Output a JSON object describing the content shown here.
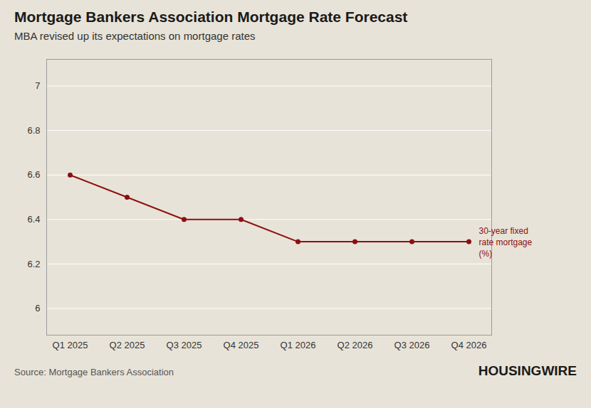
{
  "chart_data": {
    "type": "line",
    "title": "Mortgage Bankers Association Mortgage Rate Forecast",
    "subtitle": "MBA revised up its expectations on mortgage rates",
    "source": "Source: Mortgage Bankers Association",
    "branding": "HOUSINGWIRE",
    "annotation": "30-year fixed\nrate mortgage\n(%)",
    "categories": [
      "Q1 2025",
      "Q2 2025",
      "Q3 2025",
      "Q4 2025",
      "Q1 2026",
      "Q2 2026",
      "Q3 2026",
      "Q4 2026"
    ],
    "values": [
      6.6,
      6.5,
      6.4,
      6.4,
      6.3,
      6.3,
      6.3,
      6.3
    ],
    "color": "#8B1010",
    "marker": "circle",
    "ylim": [
      5.88,
      7.12
    ],
    "yticks": [
      6,
      6.2,
      6.4,
      6.6,
      6.8,
      7
    ],
    "grid": true
  }
}
